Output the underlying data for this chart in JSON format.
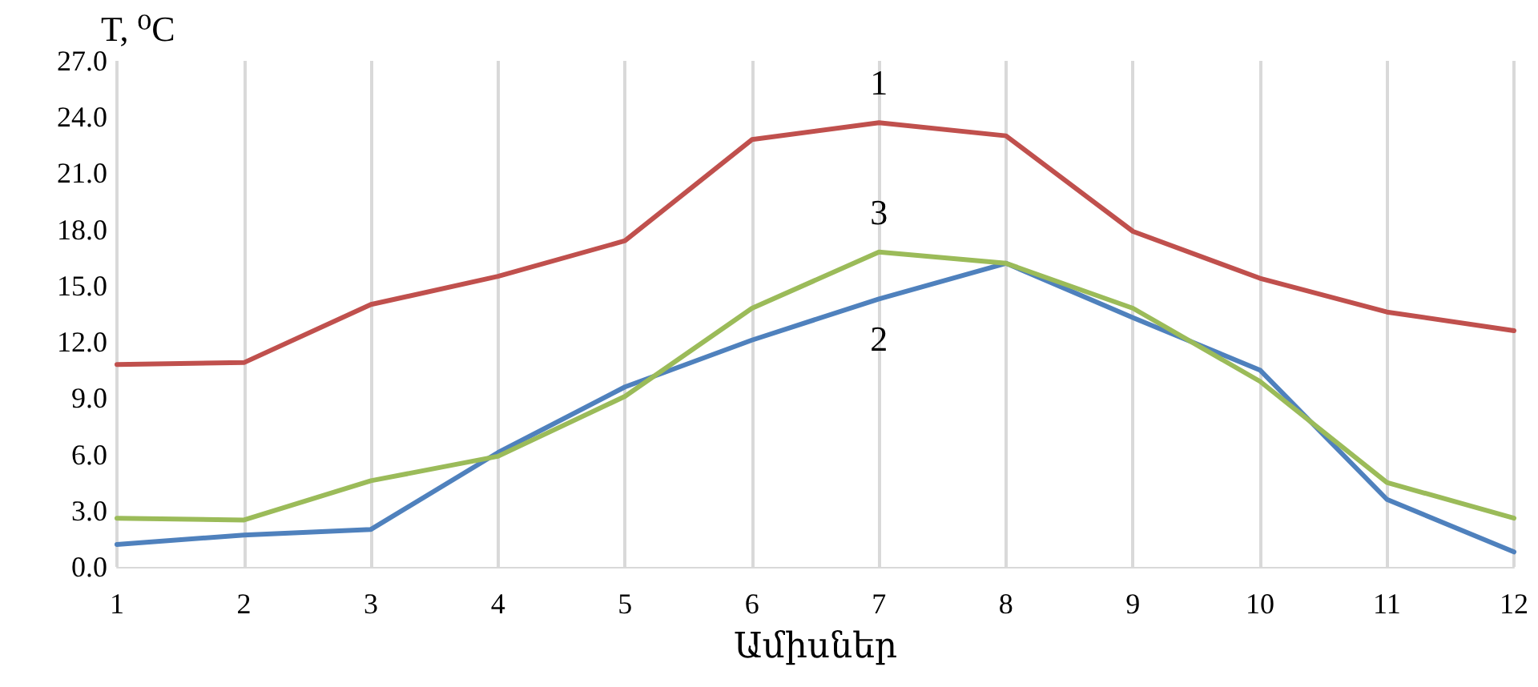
{
  "chart_data": {
    "type": "line",
    "xlabel": "Ամիսներ",
    "ylabel": "T, ⁰C",
    "x": [
      1,
      2,
      3,
      4,
      5,
      6,
      7,
      8,
      9,
      10,
      11,
      12
    ],
    "xlim": [
      1,
      12
    ],
    "xticks": [
      1,
      2,
      3,
      4,
      5,
      6,
      7,
      8,
      9,
      10,
      11,
      12
    ],
    "series": [
      {
        "name": "1",
        "color": "#c0504d",
        "values": [
          10.8,
          10.9,
          14.0,
          15.5,
          17.4,
          22.8,
          23.7,
          23.0,
          17.9,
          15.4,
          13.6,
          12.6
        ]
      },
      {
        "name": "2",
        "color": "#4f81bd",
        "values": [
          1.2,
          1.7,
          2.0,
          6.1,
          9.6,
          12.1,
          14.3,
          16.2,
          13.3,
          10.5,
          3.6,
          0.8
        ]
      },
      {
        "name": "3",
        "color": "#9bbb59",
        "values": [
          2.6,
          2.5,
          4.6,
          5.9,
          9.1,
          13.8,
          16.8,
          16.2,
          13.8,
          9.9,
          4.5,
          2.6
        ]
      }
    ],
    "ylim": [
      0,
      27
    ],
    "yticks": [
      {
        "value": 0,
        "label": "0.0"
      },
      {
        "value": 3,
        "label": "3.0"
      },
      {
        "value": 6,
        "label": "6.0"
      },
      {
        "value": 9,
        "label": "9.0"
      },
      {
        "value": 12,
        "label": "12.0"
      },
      {
        "value": 15,
        "label": "15.0"
      },
      {
        "value": 18,
        "label": "18.0"
      },
      {
        "value": 21,
        "label": "21.0"
      },
      {
        "value": 24,
        "label": "24.0"
      },
      {
        "value": 27,
        "label": "27.0"
      }
    ],
    "grid": "x",
    "legend": false,
    "marker": "none",
    "line_style": "solid"
  }
}
